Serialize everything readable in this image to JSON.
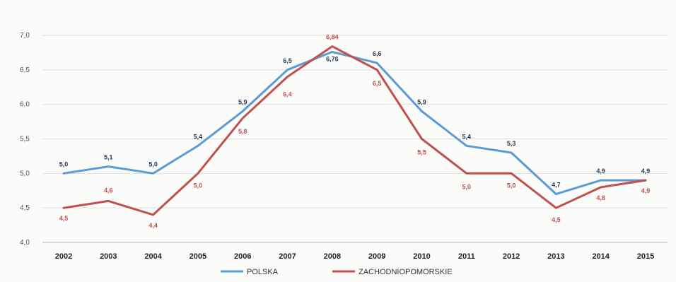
{
  "chart_data": {
    "type": "line",
    "categories": [
      "2002",
      "2003",
      "2004",
      "2005",
      "2006",
      "2007",
      "2008",
      "2009",
      "2010",
      "2011",
      "2012",
      "2013",
      "2014",
      "2015"
    ],
    "ylim": [
      4.0,
      7.0
    ],
    "yticks": [
      "4,0",
      "4,5",
      "5,0",
      "5,5",
      "6,0",
      "6,5",
      "7,0"
    ],
    "ytick_values": [
      4.0,
      4.5,
      5.0,
      5.5,
      6.0,
      6.5,
      7.0
    ],
    "grid": true,
    "legend_position": "bottom",
    "series": [
      {
        "name": "POLSKA",
        "color": "#5b9bd5",
        "label_color": "#2b3a55",
        "values": [
          5.0,
          5.1,
          5.0,
          5.4,
          5.9,
          6.5,
          6.76,
          6.6,
          5.9,
          5.4,
          5.3,
          4.7,
          4.9,
          4.9
        ],
        "labels": [
          "5,0",
          "5,1",
          "5,0",
          "5,4",
          "5,9",
          "6,5",
          "6,76",
          "6,6",
          "5,9",
          "5,4",
          "5,3",
          "4,7",
          "4,9",
          "4,9"
        ]
      },
      {
        "name": "ZACHODNIOPOMORSKIE",
        "color": "#c0504d",
        "label_color": "#c0504d",
        "values": [
          4.5,
          4.6,
          4.4,
          5.0,
          5.8,
          6.4,
          6.84,
          6.5,
          5.5,
          5.0,
          5.0,
          4.5,
          4.8,
          4.9
        ],
        "labels": [
          "4,5",
          "4,6",
          "4,4",
          "5,0",
          "5,8",
          "6,4",
          "6,84",
          "6,5",
          "5,5",
          "5,0",
          "5,0",
          "4,5",
          "4,8",
          "4,9"
        ]
      }
    ]
  }
}
